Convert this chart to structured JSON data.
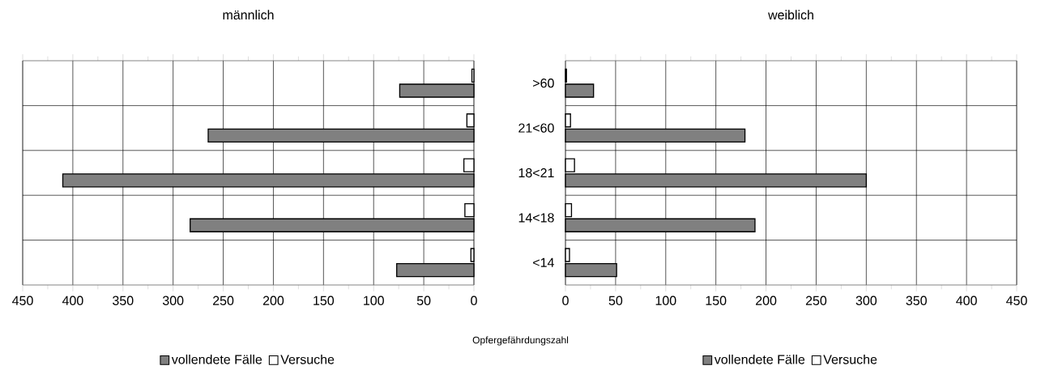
{
  "chart_data": [
    {
      "type": "bar",
      "orientation": "horizontal",
      "title": "männlich",
      "xlabel": "Opfergefährdungszahl",
      "categories": [
        null,
        null,
        null,
        null,
        null
      ],
      "series": [
        {
          "name": "vollendete Fälle",
          "color": "#808080",
          "values": [
            74,
            265,
            410,
            283,
            77
          ]
        },
        {
          "name": "Versuche",
          "color": "#ffffff",
          "values": [
            2,
            7,
            10,
            9,
            3
          ]
        }
      ],
      "xlim": [
        450,
        0
      ],
      "xticks": [
        0,
        50,
        100,
        150,
        200,
        250,
        300,
        350,
        400,
        450
      ],
      "grid": true,
      "legend": "bottom",
      "tick_labels": "x"
    },
    {
      "type": "bar",
      "orientation": "horizontal",
      "title": "weiblich",
      "categories": [
        ">60",
        "21<60",
        "18<21",
        "14<18",
        "<14"
      ],
      "series": [
        {
          "name": "vollendete Fälle",
          "color": "#808080",
          "values": [
            28,
            179,
            300,
            189,
            51
          ]
        },
        {
          "name": "Versuche",
          "color": "#ffffff",
          "values": [
            1,
            5,
            9,
            6,
            4
          ]
        }
      ],
      "xlim": [
        0,
        450
      ],
      "xticks": [
        0,
        50,
        100,
        150,
        200,
        250,
        300,
        350,
        400,
        450
      ],
      "grid": true,
      "legend": "bottom"
    }
  ]
}
